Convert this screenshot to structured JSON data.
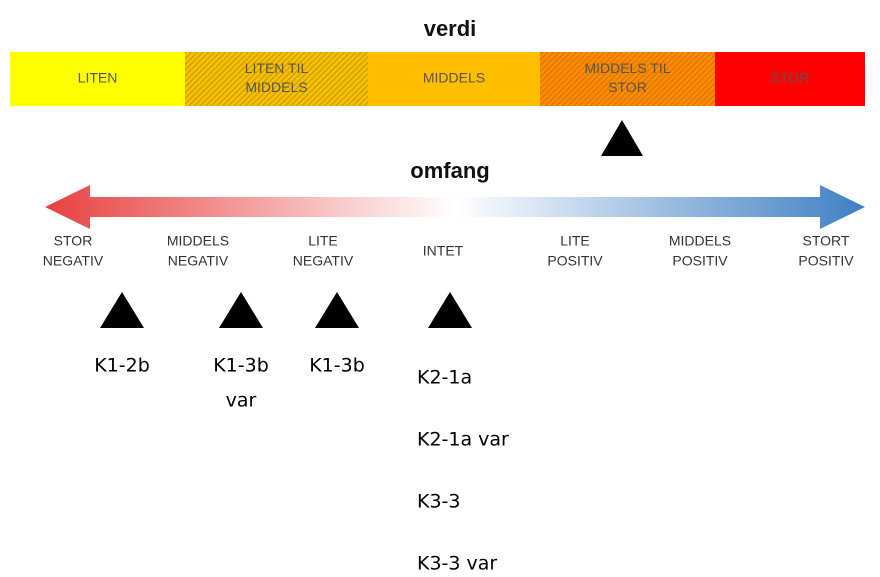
{
  "verdi": {
    "title": "verdi",
    "segments": [
      {
        "lines": [
          "LITEN"
        ],
        "color": "#ffff00",
        "hatched": false
      },
      {
        "lines": [
          "LITEN TIL",
          "MIDDELS"
        ],
        "color": "#f5c000",
        "hatched": true
      },
      {
        "lines": [
          "MIDDELS"
        ],
        "color": "#ffbf00",
        "hatched": false
      },
      {
        "lines": [
          "MIDDELS TIL",
          "STOR"
        ],
        "color": "#ff8c00",
        "hatched": true
      },
      {
        "lines": [
          "STOR"
        ],
        "color": "#ff0000",
        "hatched": false
      }
    ]
  },
  "omfang": {
    "title": "omfang",
    "labels": [
      [
        "STOR",
        "NEGATIV"
      ],
      [
        "MIDDELS",
        "NEGATIV"
      ],
      [
        "LITE",
        "NEGATIV"
      ],
      [
        "INTET"
      ],
      [
        "LITE",
        "POSITIV"
      ],
      [
        "MIDDELS",
        "POSITIV"
      ],
      [
        "STORT",
        "POSITIV"
      ]
    ]
  },
  "markers": [
    {
      "lines": [
        "K1-2b"
      ]
    },
    {
      "lines": [
        "K1-3b",
        "var"
      ]
    },
    {
      "lines": [
        "K1-3b"
      ]
    },
    {
      "lines": [
        "K2-1a",
        "K2-1a var",
        "K3-3",
        "K3-3 var"
      ]
    }
  ]
}
